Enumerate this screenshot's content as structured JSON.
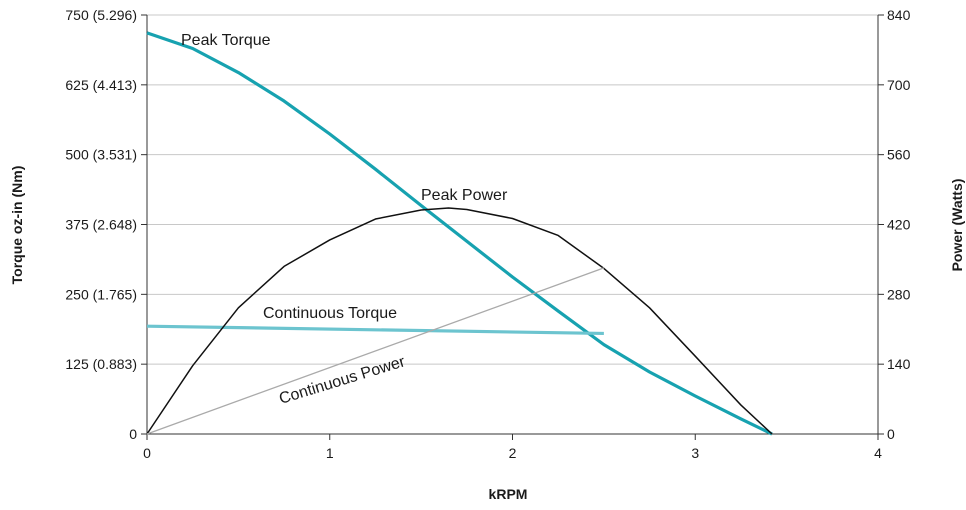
{
  "chart_data": {
    "type": "line",
    "title": "",
    "xlabel": "kRPM",
    "ylabel_left": "Torque oz-in (Nm)",
    "ylabel_right": "Power (Watts)",
    "xlim": [
      0,
      4
    ],
    "ylim_left": [
      0,
      750
    ],
    "ylim_right": [
      0,
      840
    ],
    "grid": "horizontal",
    "colors": {
      "peak_torque": "#17a2b0",
      "continuous_torque": "#6cc4cf",
      "peak_power": "#111111",
      "continuous_power": "#aaaaaa",
      "grid": "#c8c8c8"
    },
    "x_ticks": [
      {
        "value": 0,
        "label": "0"
      },
      {
        "value": 1,
        "label": "1"
      },
      {
        "value": 2,
        "label": "2"
      },
      {
        "value": 3,
        "label": "3"
      },
      {
        "value": 4,
        "label": "4"
      }
    ],
    "y_left_ticks": [
      {
        "value": 0,
        "label": "0"
      },
      {
        "value": 125,
        "label": "125 (0.883)"
      },
      {
        "value": 250,
        "label": "250 (1.765)"
      },
      {
        "value": 375,
        "label": "375 (2.648)"
      },
      {
        "value": 500,
        "label": "500 (3.531)"
      },
      {
        "value": 625,
        "label": "625 (4.413)"
      },
      {
        "value": 750,
        "label": "750 (5.296)"
      }
    ],
    "y_right_ticks": [
      {
        "value": 0,
        "label": "0"
      },
      {
        "value": 140,
        "label": "140"
      },
      {
        "value": 280,
        "label": "280"
      },
      {
        "value": 420,
        "label": "420"
      },
      {
        "value": 560,
        "label": "560"
      },
      {
        "value": 700,
        "label": "700"
      },
      {
        "value": 840,
        "label": "840"
      }
    ],
    "series": [
      {
        "name": "Peak Torque",
        "axis": "left",
        "color": "#17a2b0",
        "x": [
          0,
          0.25,
          0.5,
          0.75,
          1.0,
          1.25,
          1.5,
          1.75,
          2.0,
          2.25,
          2.5,
          2.75,
          3.0,
          3.25,
          3.42
        ],
        "y": [
          718,
          690,
          647,
          596,
          537,
          474,
          409,
          345,
          281,
          220,
          160,
          111,
          68,
          27,
          0
        ]
      },
      {
        "name": "Continuous Torque",
        "axis": "left",
        "color": "#6cc4cf",
        "x": [
          0,
          2.5
        ],
        "y": [
          193,
          180
        ]
      },
      {
        "name": "Peak Power",
        "axis": "right",
        "color": "#111111",
        "x": [
          0,
          0.25,
          0.5,
          0.75,
          1.0,
          1.25,
          1.5,
          1.65,
          1.75,
          2.0,
          2.25,
          2.5,
          2.75,
          3.0,
          3.25,
          3.42
        ],
        "y": [
          0,
          137,
          253,
          336,
          389,
          431,
          449,
          453,
          450,
          432,
          398,
          332,
          253,
          156,
          58,
          0
        ]
      },
      {
        "name": "Continuous Power",
        "axis": "right",
        "color": "#aaaaaa",
        "x": [
          0,
          2.5
        ],
        "y": [
          0,
          333
        ]
      }
    ],
    "annotations": {
      "peak_torque": "Peak Torque",
      "peak_power": "Peak Power",
      "continuous_torque": "Continuous Torque",
      "continuous_power": "Continuous Power"
    }
  }
}
